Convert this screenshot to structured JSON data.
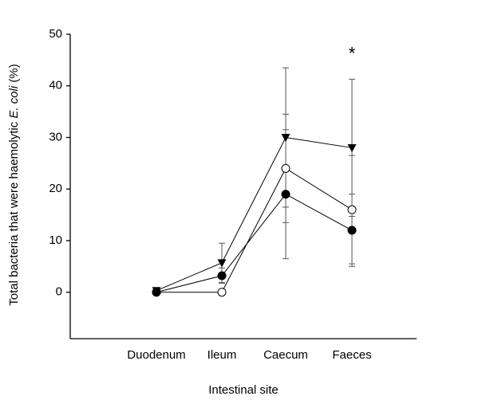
{
  "chart_data": {
    "type": "line",
    "ylabel": [
      "Total bacteria that were haemolytic ",
      "E. coli",
      " (%)"
    ],
    "xlabel": "Intestinal site",
    "categories": [
      "Duodenum",
      "Ileum",
      "Caecum",
      "Faeces"
    ],
    "series": [
      {
        "marker": "triangle-down",
        "color": "#000000",
        "values": [
          0.3,
          5.7,
          30,
          28
        ],
        "errors": [
          0,
          3.8,
          13.5,
          13.3
        ]
      },
      {
        "marker": "open-circle",
        "color": "#000000",
        "values": [
          0,
          0,
          24,
          16
        ],
        "errors": [
          0,
          0,
          10.5,
          10.5
        ]
      },
      {
        "marker": "filled-circle",
        "color": "#000000",
        "values": [
          0,
          3.2,
          19,
          12
        ],
        "errors": [
          0,
          1.5,
          12.5,
          7
        ]
      }
    ],
    "ylim": [
      -9,
      50
    ],
    "yticks": [
      0,
      10,
      20,
      30,
      40,
      50
    ],
    "annotations": [
      {
        "text": "*",
        "category": 3,
        "y": 46
      }
    ]
  }
}
